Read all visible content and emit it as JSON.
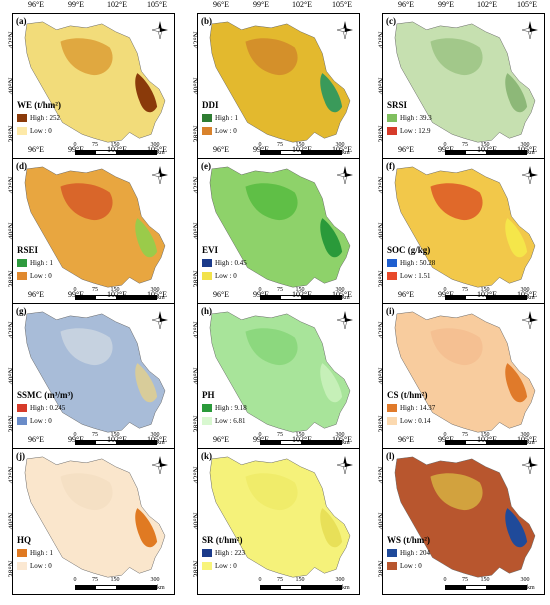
{
  "axes": {
    "lon_ticks": [
      "96°E",
      "99°E",
      "102°E",
      "105°E"
    ],
    "lat_ticks": [
      "42°N",
      "40°N",
      "38°N"
    ]
  },
  "scale": {
    "ticks": [
      "0",
      "75",
      "150",
      "300"
    ],
    "unit": "km"
  },
  "compass_icon": "north-arrow-icon",
  "panels": [
    {
      "label": "(a)",
      "title": "WE (t/hm²)",
      "high": "High : 252",
      "low": "Low : 0",
      "colors": [
        "#f2dc7a",
        "#e0a840",
        "#8a3a0a"
      ],
      "high_color": "#8a3a0a",
      "low_color": "#fde9a8"
    },
    {
      "label": "(b)",
      "title": "DDI",
      "high": "High : 1",
      "low": "Low : 0",
      "colors": [
        "#e3b92e",
        "#d4902a",
        "#3a9a5a"
      ],
      "high_color": "#2e7d32",
      "low_color": "#d9822b"
    },
    {
      "label": "(c)",
      "title": "SRSI",
      "high": "High : 39.3",
      "low": "Low : 12.9",
      "colors": [
        "#c6e0b0",
        "#a2c88a",
        "#8db878"
      ],
      "high_color": "#7fbf5f",
      "low_color": "#d63b2a"
    },
    {
      "label": "(d)",
      "title": "RSEI",
      "high": "High : 1",
      "low": "Low : 0",
      "colors": [
        "#e8a640",
        "#d9662a",
        "#9acb4a"
      ],
      "high_color": "#2e9a3e",
      "low_color": "#e0892e"
    },
    {
      "label": "(e)",
      "title": "EVI",
      "high": "High : 0.45",
      "low": "Low : 0",
      "colors": [
        "#8ed26a",
        "#5fbf46",
        "#2a9a3a"
      ],
      "high_color": "#1a3a8a",
      "low_color": "#f2e24a"
    },
    {
      "label": "(f)",
      "title": "SOC (g/kg)",
      "high": "High : 50.28",
      "low": "Low : 1.51",
      "colors": [
        "#f2c84a",
        "#e0692a",
        "#f5e64a"
      ],
      "high_color": "#1f5fd0",
      "low_color": "#e8492a"
    },
    {
      "label": "(g)",
      "title": "SSMC (m³/m³)",
      "high": "High : 0.245",
      "low": "Low : 0",
      "colors": [
        "#a8bcd8",
        "#c6d2e0",
        "#d8cc9a"
      ],
      "high_color": "#d63b2a",
      "low_color": "#6a8cc8"
    },
    {
      "label": "(h)",
      "title": "PH",
      "high": "High : 9.18",
      "low": "Low : 6.81",
      "colors": [
        "#a8e49a",
        "#8cd87e",
        "#c6f0b8"
      ],
      "high_color": "#2a9a3a",
      "low_color": "#d8f8d0"
    },
    {
      "label": "(i)",
      "title": "CS (t/hm²)",
      "high": "High : 14.37",
      "low": "Low : 0.14",
      "colors": [
        "#f8cc9e",
        "#f5c092",
        "#e07a2a"
      ],
      "high_color": "#e07a2a",
      "low_color": "#fbd9b0"
    },
    {
      "label": "(j)",
      "title": "HQ",
      "high": "High : 1",
      "low": "Low : 0",
      "colors": [
        "#fae6cc",
        "#f5e0c4",
        "#e07a22"
      ],
      "high_color": "#e07a22",
      "low_color": "#fbe8d2"
    },
    {
      "label": "(k)",
      "title": "SR (t/hm²)",
      "high": "High : 223",
      "low": "Low : 0",
      "colors": [
        "#f5f27a",
        "#f0ec6a",
        "#e8e058"
      ],
      "high_color": "#1a3a8a",
      "low_color": "#f8f47a"
    },
    {
      "label": "(l)",
      "title": "WS (t/hm²)",
      "high": "High : 204",
      "low": "Low : 0",
      "colors": [
        "#b8562e",
        "#d2a23e",
        "#1f4a9a"
      ],
      "high_color": "#1f4a9a",
      "low_color": "#b8562e"
    }
  ]
}
